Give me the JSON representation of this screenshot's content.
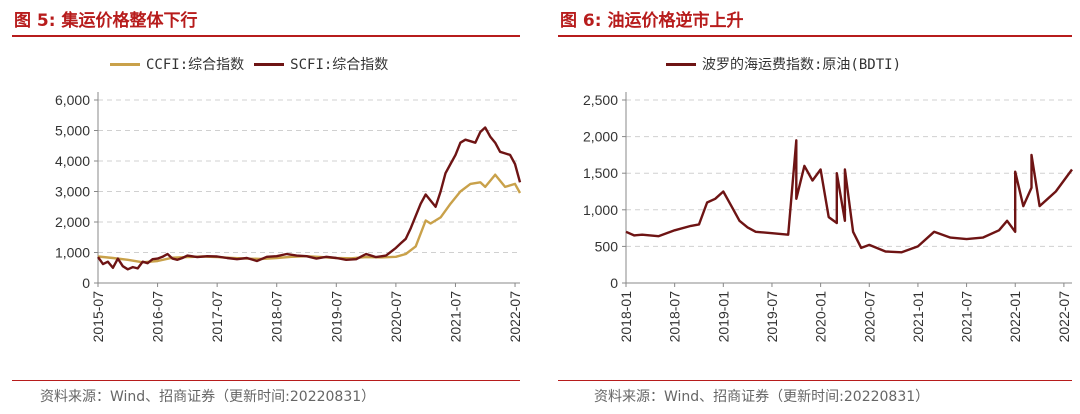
{
  "left": {
    "title": "图 5:  集运价格整体下行",
    "source": "资料来源：Wind、招商证券（更新时间:20220831）"
  },
  "right": {
    "title": "图 6:  油运价格逆市上升",
    "source": "资料来源：Wind、招商证券（更新时间:20220831）"
  },
  "chart_data": [
    {
      "type": "line",
      "title": "",
      "xlabel": "",
      "ylabel": "",
      "ylim": [
        0,
        6000
      ],
      "xlim": [
        "2015-07",
        "2022-08"
      ],
      "yticks": [
        "0",
        "1,000",
        "2,000",
        "3,000",
        "4,000",
        "5,000",
        "6,000"
      ],
      "xticks": [
        "2015-07",
        "2016-07",
        "2017-07",
        "2018-07",
        "2019-07",
        "2020-07",
        "2021-07",
        "2022-07"
      ],
      "grid": true,
      "legend_position": "top",
      "series": [
        {
          "name": "CCFI:综合指数",
          "color": "#c9a14a",
          "x": [
            "2015-07",
            "2015-10",
            "2016-01",
            "2016-04",
            "2016-07",
            "2016-10",
            "2017-01",
            "2017-04",
            "2017-07",
            "2017-10",
            "2018-01",
            "2018-04",
            "2018-07",
            "2018-10",
            "2019-01",
            "2019-04",
            "2019-07",
            "2019-10",
            "2020-01",
            "2020-04",
            "2020-07",
            "2020-09",
            "2020-11",
            "2021-01",
            "2021-02",
            "2021-04",
            "2021-06",
            "2021-08",
            "2021-10",
            "2021-12",
            "2022-01",
            "2022-03",
            "2022-05",
            "2022-07",
            "2022-08"
          ],
          "values": [
            870,
            820,
            760,
            680,
            720,
            830,
            850,
            870,
            850,
            820,
            800,
            790,
            820,
            860,
            880,
            850,
            820,
            810,
            850,
            840,
            860,
            950,
            1200,
            2050,
            1950,
            2150,
            2600,
            3000,
            3250,
            3300,
            3150,
            3550,
            3150,
            3250,
            2950
          ]
        },
        {
          "name": "SCFI:综合指数",
          "color": "#6e1414",
          "x": [
            "2015-07",
            "2015-08",
            "2015-09",
            "2015-10",
            "2015-11",
            "2015-12",
            "2016-01",
            "2016-02",
            "2016-03",
            "2016-04",
            "2016-05",
            "2016-06",
            "2016-07",
            "2016-08",
            "2016-09",
            "2016-10",
            "2016-11",
            "2016-12",
            "2017-01",
            "2017-03",
            "2017-05",
            "2017-07",
            "2017-09",
            "2017-11",
            "2018-01",
            "2018-03",
            "2018-05",
            "2018-07",
            "2018-09",
            "2018-11",
            "2019-01",
            "2019-03",
            "2019-05",
            "2019-07",
            "2019-09",
            "2019-11",
            "2020-01",
            "2020-03",
            "2020-05",
            "2020-07",
            "2020-08",
            "2020-09",
            "2020-10",
            "2020-11",
            "2020-12",
            "2021-01",
            "2021-02",
            "2021-03",
            "2021-04",
            "2021-05",
            "2021-06",
            "2021-07",
            "2021-08",
            "2021-09",
            "2021-10",
            "2021-11",
            "2021-12",
            "2022-01",
            "2022-02",
            "2022-03",
            "2022-04",
            "2022-05",
            "2022-06",
            "2022-07",
            "2022-08"
          ],
          "values": [
            850,
            620,
            700,
            500,
            800,
            550,
            450,
            520,
            480,
            700,
            650,
            780,
            800,
            860,
            950,
            800,
            760,
            820,
            900,
            850,
            880,
            870,
            820,
            780,
            820,
            720,
            860,
            880,
            950,
            900,
            880,
            800,
            860,
            820,
            760,
            780,
            950,
            850,
            900,
            1150,
            1300,
            1450,
            1800,
            2200,
            2600,
            2900,
            2700,
            2500,
            3000,
            3600,
            3900,
            4200,
            4600,
            4700,
            4650,
            4600,
            4950,
            5100,
            4800,
            4600,
            4300,
            4250,
            4200,
            3900,
            3300
          ]
        }
      ]
    },
    {
      "type": "line",
      "title": "",
      "xlabel": "",
      "ylabel": "",
      "ylim": [
        0,
        2500
      ],
      "xlim": [
        "2018-01",
        "2022-08"
      ],
      "yticks": [
        "0",
        "500",
        "1,000",
        "1,500",
        "2,000",
        "2,500"
      ],
      "xticks": [
        "2018-01",
        "2018-07",
        "2019-01",
        "2019-07",
        "2020-01",
        "2020-07",
        "2021-01",
        "2021-07",
        "2022-01",
        "2022-07"
      ],
      "grid": true,
      "legend_position": "top",
      "series": [
        {
          "name": "波罗的海运费指数:原油(BDTI)",
          "color": "#6e1414",
          "x": [
            "2018-01",
            "2018-02",
            "2018-03",
            "2018-05",
            "2018-07",
            "2018-09",
            "2018-10",
            "2018-11",
            "2018-12",
            "2019-01",
            "2019-02",
            "2019-03",
            "2019-04",
            "2019-05",
            "2019-07",
            "2019-09",
            "2019-10",
            "2019-10",
            "2019-11",
            "2019-12",
            "2020-01",
            "2020-02",
            "2020-03",
            "2020-03",
            "2020-04",
            "2020-04",
            "2020-05",
            "2020-06",
            "2020-07",
            "2020-09",
            "2020-11",
            "2021-01",
            "2021-03",
            "2021-05",
            "2021-07",
            "2021-09",
            "2021-11",
            "2021-12",
            "2022-01",
            "2022-01",
            "2022-02",
            "2022-03",
            "2022-03",
            "2022-04",
            "2022-05",
            "2022-06",
            "2022-07",
            "2022-08"
          ],
          "values": [
            700,
            650,
            660,
            640,
            720,
            780,
            800,
            1100,
            1150,
            1250,
            1050,
            850,
            760,
            700,
            680,
            660,
            1950,
            1150,
            1600,
            1400,
            1550,
            900,
            820,
            1500,
            850,
            1550,
            700,
            480,
            520,
            430,
            420,
            500,
            700,
            620,
            600,
            620,
            720,
            850,
            700,
            1520,
            1050,
            1300,
            1750,
            1050,
            1150,
            1250,
            1400,
            1550
          ]
        }
      ]
    }
  ]
}
